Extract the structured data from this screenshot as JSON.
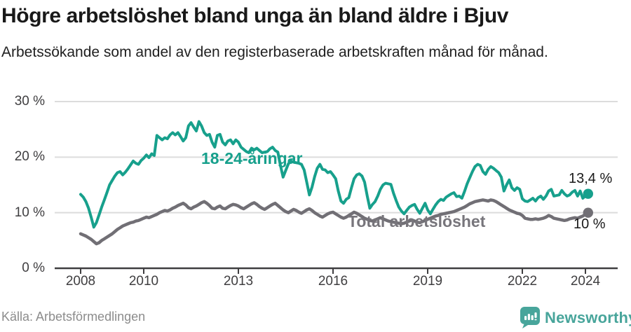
{
  "header": {
    "title": "Högre arbetslöshet bland unga än bland äldre i Bjuv",
    "subtitle": "Arbetssökande som andel av den registerbaserade arbetskraften månad för månad."
  },
  "footer": {
    "source": "Källa: Arbetsförmedlingen",
    "brand": "Newsworthy",
    "brand_color": "#48a59b"
  },
  "colors": {
    "grid": "#dcdcdc",
    "axis": "#3f3e40",
    "youth_line": "#17a08c",
    "total_line": "#716f75"
  },
  "chart_data": {
    "type": "line",
    "unit": "%",
    "x_start_year": 2008,
    "x_interval": "monthly",
    "x_end": "2024-02",
    "grid": "horizontal",
    "ylim": [
      0,
      32
    ],
    "y_ticks": [
      {
        "value": 0,
        "label": "0 %"
      },
      {
        "value": 10,
        "label": "10 %"
      },
      {
        "value": 20,
        "label": "20 %"
      },
      {
        "value": 30,
        "label": "30 %"
      }
    ],
    "x_ticks": [
      {
        "value": 2008,
        "label": "2008"
      },
      {
        "value": 2010,
        "label": "2010"
      },
      {
        "value": 2013,
        "label": "2013"
      },
      {
        "value": 2016,
        "label": "2016"
      },
      {
        "value": 2019,
        "label": "2019"
      },
      {
        "value": 2022,
        "label": "2022"
      },
      {
        "value": 2024,
        "label": "2024"
      }
    ],
    "series": [
      {
        "name": "18-24-åringar",
        "color": "#17a08c",
        "line_width": 4,
        "end_label": "13,4 %",
        "end_value": 13.4,
        "values": [
          13.3,
          12.8,
          12.0,
          10.8,
          9.2,
          7.4,
          8.2,
          9.6,
          11.0,
          12.3,
          13.6,
          15.0,
          15.8,
          16.6,
          17.2,
          17.4,
          16.8,
          17.3,
          17.9,
          18.6,
          19.3,
          18.9,
          18.7,
          19.4,
          19.8,
          20.4,
          19.9,
          20.6,
          20.3,
          23.9,
          23.5,
          23.1,
          23.5,
          23.3,
          24.0,
          24.4,
          24.0,
          24.4,
          23.7,
          22.9,
          23.5,
          25.6,
          26.2,
          25.4,
          24.7,
          26.4,
          25.6,
          24.4,
          23.9,
          24.1,
          22.7,
          21.8,
          23.9,
          24.1,
          22.7,
          22.2,
          22.9,
          23.1,
          22.4,
          23.1,
          22.7,
          21.8,
          21.4,
          21.0,
          20.8,
          21.6,
          21.3,
          21.6,
          21.2,
          20.8,
          20.9,
          21.0,
          21.5,
          21.8,
          21.2,
          20.9,
          18.5,
          16.4,
          17.6,
          18.8,
          19.3,
          19.1,
          19.0,
          18.9,
          18.7,
          17.7,
          15.5,
          13.2,
          14.6,
          16.5,
          18.0,
          18.7,
          17.8,
          17.7,
          17.2,
          17.4,
          16.8,
          16.1,
          13.9,
          12.1,
          11.7,
          12.4,
          12.7,
          14.5,
          16.1,
          16.8,
          17.0,
          16.6,
          15.5,
          13.0,
          10.8,
          11.5,
          12.0,
          13.0,
          14.2,
          15.0,
          15.3,
          15.2,
          15.1,
          13.5,
          12.2,
          11.0,
          10.3,
          9.8,
          10.4,
          11.0,
          11.3,
          11.5,
          10.6,
          9.9,
          10.8,
          11.7,
          10.5,
          9.8,
          10.6,
          11.4,
          12.0,
          12.4,
          12.2,
          12.8,
          13.1,
          13.4,
          13.6,
          12.9,
          13.0,
          12.6,
          13.8,
          15.2,
          16.3,
          17.4,
          18.3,
          18.7,
          18.5,
          17.4,
          16.9,
          17.8,
          18.3,
          18.0,
          17.6,
          17.2,
          16.4,
          13.9,
          15.0,
          15.9,
          14.5,
          14.0,
          14.5,
          14.2,
          12.5,
          12.1,
          12.0,
          12.3,
          12.6,
          12.1,
          12.7,
          13.0,
          12.4,
          13.0,
          13.9,
          14.2,
          13.0,
          13.1,
          13.2,
          14.0,
          13.4,
          13.0,
          13.2,
          13.7,
          14.0,
          13.0,
          13.9,
          12.6,
          13.0,
          13.4
        ]
      },
      {
        "name": "Total arbetslöshet",
        "color": "#716f75",
        "line_width": 4.5,
        "end_label": "10 %",
        "end_value": 10.0,
        "values": [
          6.2,
          6.0,
          5.8,
          5.5,
          5.2,
          4.8,
          4.4,
          4.6,
          5.0,
          5.3,
          5.6,
          5.9,
          6.2,
          6.6,
          7.0,
          7.3,
          7.6,
          7.8,
          8.0,
          8.2,
          8.3,
          8.5,
          8.6,
          8.8,
          9.0,
          9.2,
          9.1,
          9.3,
          9.5,
          9.7,
          10.0,
          10.2,
          10.4,
          10.3,
          10.5,
          10.8,
          11.0,
          11.3,
          11.5,
          11.7,
          11.4,
          10.9,
          10.7,
          11.0,
          11.2,
          11.5,
          11.8,
          12.0,
          11.7,
          11.3,
          10.8,
          10.7,
          11.0,
          11.2,
          10.8,
          10.7,
          11.0,
          11.3,
          11.5,
          11.4,
          11.2,
          10.9,
          10.7,
          11.0,
          11.3,
          11.6,
          11.8,
          11.5,
          11.1,
          10.8,
          10.6,
          10.9,
          11.2,
          11.5,
          11.7,
          11.3,
          10.9,
          10.5,
          10.2,
          10.0,
          10.3,
          10.6,
          10.4,
          10.1,
          9.9,
          10.2,
          10.5,
          10.7,
          10.4,
          10.0,
          9.7,
          9.4,
          9.2,
          9.5,
          9.8,
          10.0,
          10.1,
          9.8,
          9.5,
          9.2,
          9.0,
          9.2,
          9.5,
          9.8,
          10.1,
          9.9,
          9.6,
          9.3,
          9.0,
          8.8,
          8.6,
          8.5,
          8.7,
          8.9,
          9.1,
          8.9,
          8.7,
          8.5,
          8.4,
          8.3,
          8.2,
          8.1,
          8.0,
          8.1,
          8.3,
          8.5,
          8.7,
          8.5,
          8.3,
          8.2,
          8.4,
          8.6,
          8.8,
          9.0,
          9.2,
          9.4,
          9.5,
          9.7,
          9.8,
          9.9,
          10.0,
          10.1,
          10.2,
          10.4,
          10.6,
          10.8,
          11.0,
          11.3,
          11.6,
          11.8,
          12.0,
          12.1,
          12.2,
          12.3,
          12.2,
          12.1,
          12.3,
          12.2,
          12.0,
          11.7,
          11.4,
          11.1,
          10.8,
          10.5,
          10.3,
          10.1,
          9.9,
          9.8,
          9.5,
          9.0,
          8.9,
          8.8,
          8.8,
          8.9,
          8.8,
          8.9,
          9.0,
          9.2,
          9.5,
          9.3,
          9.0,
          8.9,
          8.8,
          8.7,
          8.6,
          8.7,
          8.9,
          9.0,
          9.1,
          9.0,
          9.2,
          9.4,
          9.7,
          10.0
        ]
      }
    ]
  }
}
